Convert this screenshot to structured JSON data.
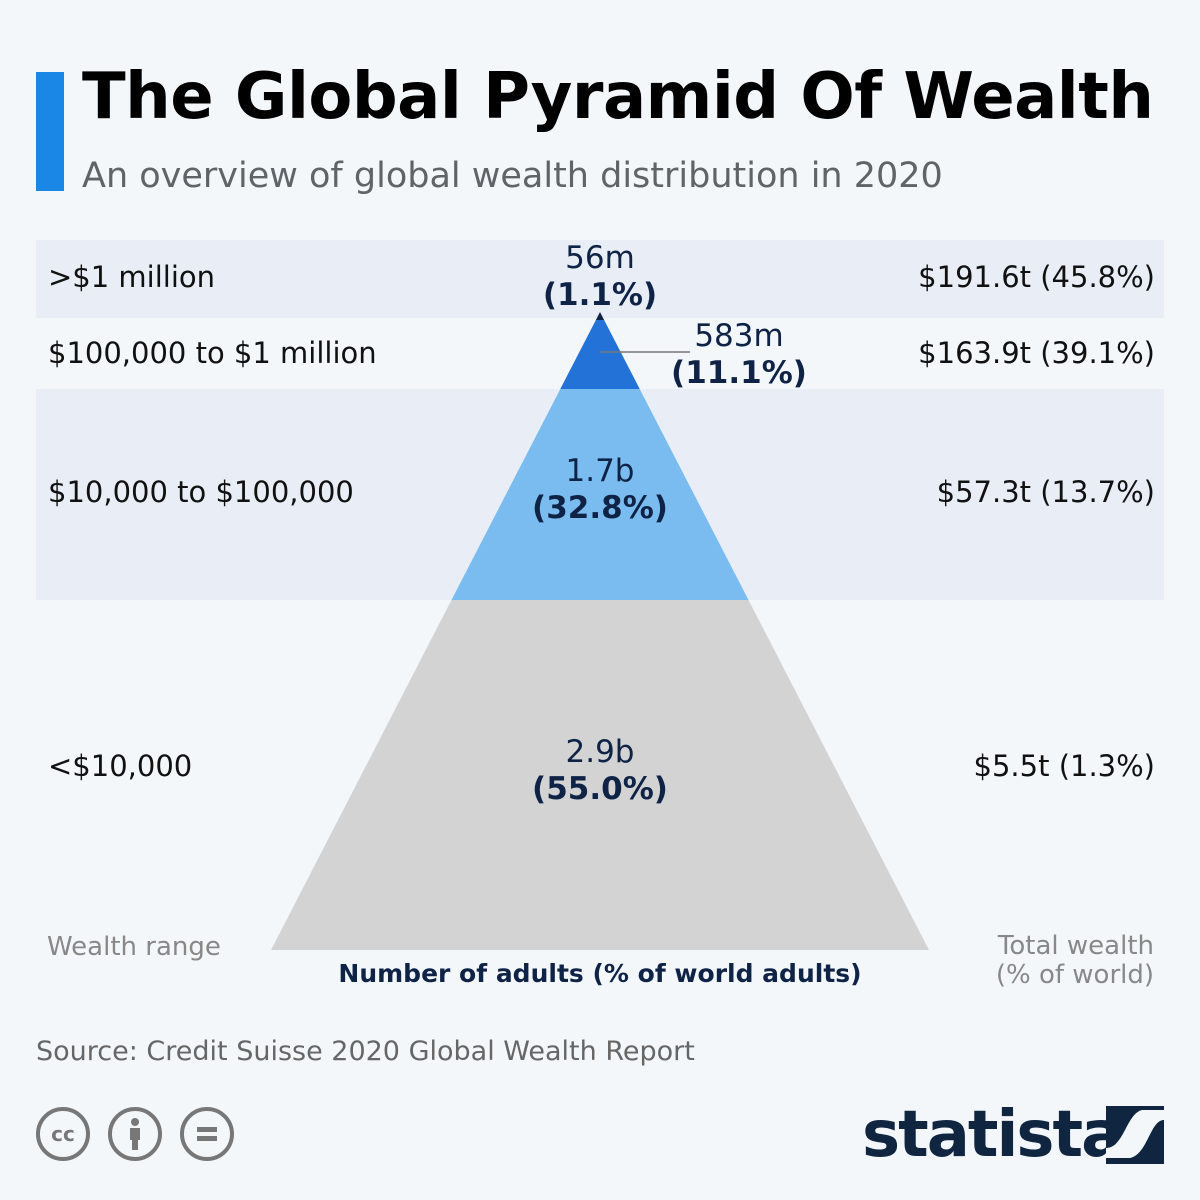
{
  "header": {
    "title": "The Global Pyramid Of Wealth",
    "subtitle": "An overview of global wealth distribution in 2020",
    "accent_color": "#1a87e6"
  },
  "chart_data": {
    "type": "pyramid",
    "title": "The Global Pyramid Of Wealth",
    "subtitle": "An overview of global wealth distribution in 2020",
    "left_label": "Wealth range",
    "center_label": "Number of adults (% of world adults)",
    "right_label_line1": "Total wealth",
    "right_label_line2": "(% of world)",
    "tiers": [
      {
        "range": ">$1 million",
        "adults": "56m",
        "adults_pct": "(1.1%)",
        "adults_pct_value": 1.1,
        "wealth": "$191.6t (45.8%)",
        "wealth_trillions": 191.6,
        "wealth_pct": 45.8,
        "color": "#0e2346"
      },
      {
        "range": "$100,000 to $1 million",
        "adults": "583m",
        "adults_pct": "(11.1%)",
        "adults_pct_value": 11.1,
        "wealth": "$163.9t (39.1%)",
        "wealth_trillions": 163.9,
        "wealth_pct": 39.1,
        "color": "#2272d8"
      },
      {
        "range": "$10,000 to $100,000",
        "adults": "1.7b",
        "adults_pct": "(32.8%)",
        "adults_pct_value": 32.8,
        "wealth": "$57.3t (13.7%)",
        "wealth_trillions": 57.3,
        "wealth_pct": 13.7,
        "color": "#7bbcf0"
      },
      {
        "range": "<$10,000",
        "adults": "2.9b",
        "adults_pct": "(55.0%)",
        "adults_pct_value": 55.0,
        "wealth": "$5.5t (1.3%)",
        "wealth_trillions": 5.5,
        "wealth_pct": 1.3,
        "color": "#d3d3d3"
      }
    ]
  },
  "footer": {
    "source": "Source: Credit Suisse 2020 Global Wealth Report",
    "license_icons": [
      "creative-commons-icon",
      "attribution-icon",
      "no-derivatives-icon"
    ],
    "brand": "statista"
  }
}
